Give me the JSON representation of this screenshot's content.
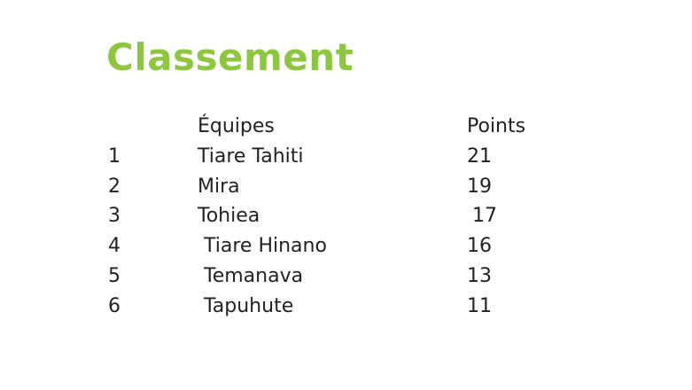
{
  "title": "Classement",
  "title_color": "#8dc63f",
  "table": {
    "headers": {
      "rank": "",
      "team": "Équipes",
      "points": "Points"
    },
    "rows": [
      {
        "rank": "1",
        "team": "Tiare Tahiti",
        "points": "21"
      },
      {
        "rank": "2",
        "team": "Mira",
        "points": "19"
      },
      {
        "rank": "3",
        "team": "Tohiea",
        "points": "17"
      },
      {
        "rank": "4",
        "team": "Tiare Hinano",
        "points": "16"
      },
      {
        "rank": "5",
        "team": "Temanava",
        "points": "13"
      },
      {
        "rank": "6",
        "team": "Tapuhute",
        "points": "11"
      }
    ]
  }
}
